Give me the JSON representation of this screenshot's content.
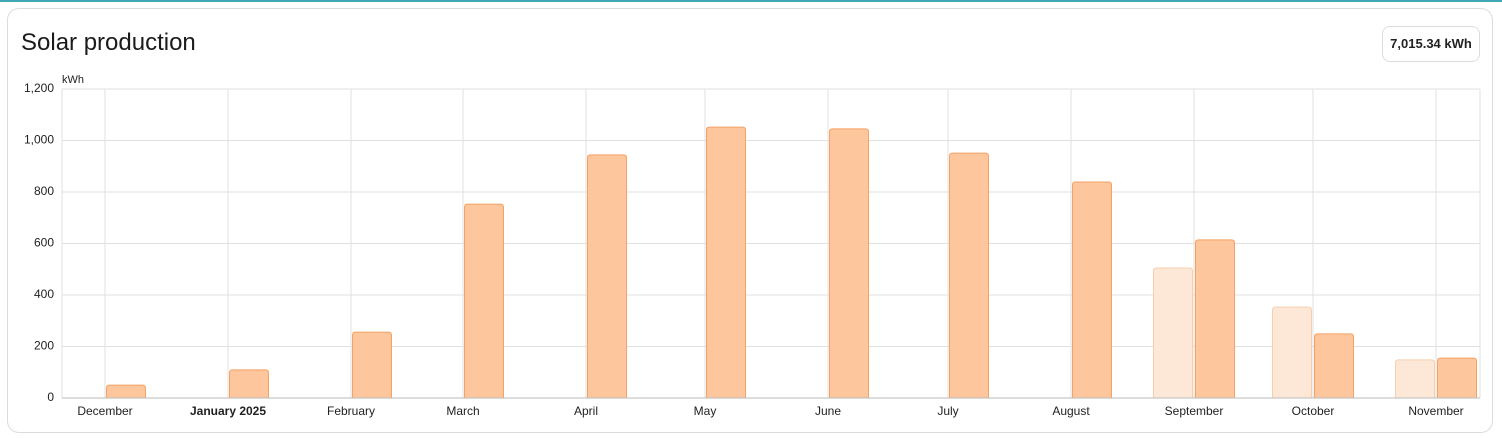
{
  "chart_data": {
    "type": "bar",
    "title": "Solar production",
    "total": "7,015.34 kWh",
    "y_unit": "kWh",
    "categories": [
      "December",
      "January 2025",
      "February",
      "March",
      "April",
      "May",
      "June",
      "July",
      "August",
      "September",
      "October",
      "November"
    ],
    "series": [
      {
        "color": "#fdc69c",
        "values": [
          50,
          109,
          256,
          753,
          944,
          1052,
          1045,
          951,
          839,
          614,
          249,
          155
        ]
      },
      {
        "color": "#fde8d7",
        "values": [
          null,
          null,
          null,
          null,
          null,
          null,
          null,
          null,
          null,
          505,
          353,
          148
        ]
      }
    ],
    "ylim": [
      0,
      1200
    ],
    "yticks": [
      0,
      200,
      400,
      600,
      800,
      {
        "value": 1000,
        "label": "1,000"
      },
      {
        "value": 1200,
        "label": "1,200"
      }
    ],
    "grid": true
  }
}
